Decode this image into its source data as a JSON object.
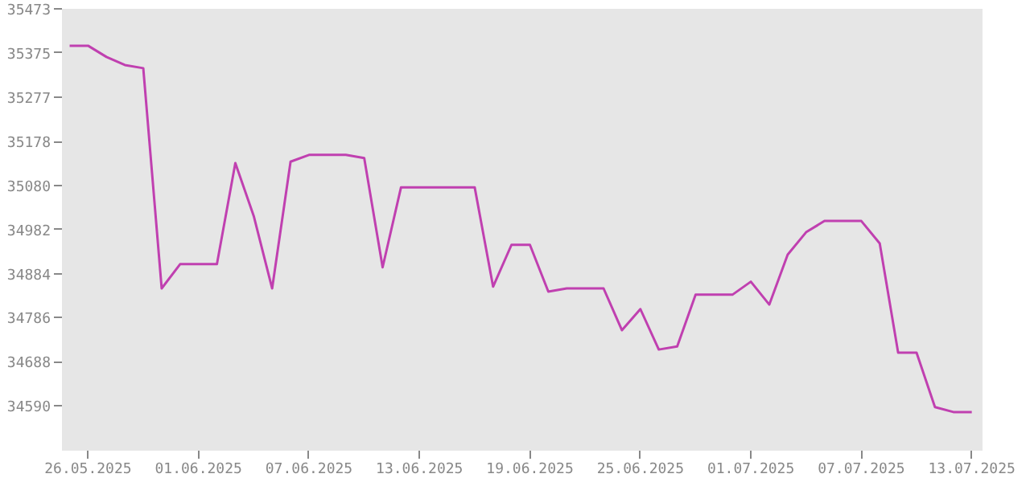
{
  "chart_data": {
    "type": "line",
    "x": [
      "2025-05-25",
      "2025-05-26",
      "2025-05-27",
      "2025-05-28",
      "2025-05-29",
      "2025-05-30",
      "2025-05-31",
      "2025-06-01",
      "2025-06-02",
      "2025-06-03",
      "2025-06-04",
      "2025-06-05",
      "2025-06-06",
      "2025-06-07",
      "2025-06-08",
      "2025-06-09",
      "2025-06-10",
      "2025-06-11",
      "2025-06-12",
      "2025-06-13",
      "2025-06-14",
      "2025-06-15",
      "2025-06-16",
      "2025-06-17",
      "2025-06-18",
      "2025-06-19",
      "2025-06-20",
      "2025-06-21",
      "2025-06-22",
      "2025-06-23",
      "2025-06-24",
      "2025-06-25",
      "2025-06-26",
      "2025-06-27",
      "2025-06-28",
      "2025-06-29",
      "2025-06-30",
      "2025-07-01",
      "2025-07-02",
      "2025-07-03",
      "2025-07-04",
      "2025-07-05",
      "2025-07-06",
      "2025-07-07",
      "2025-07-08",
      "2025-07-09",
      "2025-07-10",
      "2025-07-11",
      "2025-07-12",
      "2025-07-13"
    ],
    "series": [
      {
        "color": "#c040b0",
        "values": [
          35391,
          35391,
          35366,
          35348,
          35341,
          34851,
          34905,
          34905,
          34905,
          35130,
          35012,
          34851,
          35133,
          35148,
          35148,
          35148,
          35141,
          34898,
          35076,
          35076,
          35076,
          35076,
          35076,
          34855,
          34948,
          34948,
          34844,
          34851,
          34851,
          34851,
          34758,
          34805,
          34715,
          34722,
          34837,
          34837,
          34837,
          34866,
          34815,
          34926,
          34976,
          35001,
          35001,
          35001,
          34951,
          34708,
          34708,
          34587,
          34576,
          34576
        ]
      }
    ],
    "xlim": [
      "2025-05-24T14:00",
      "2025-07-13T14:00"
    ],
    "xticks": [
      {
        "value": "2025-05-26",
        "label": "26.05.2025"
      },
      {
        "value": "2025-06-01",
        "label": "01.06.2025"
      },
      {
        "value": "2025-06-07",
        "label": "07.06.2025"
      },
      {
        "value": "2025-06-13",
        "label": "13.06.2025"
      },
      {
        "value": "2025-06-19",
        "label": "19.06.2025"
      },
      {
        "value": "2025-06-25",
        "label": "25.06.2025"
      },
      {
        "value": "2025-07-01",
        "label": "01.07.2025"
      },
      {
        "value": "2025-07-07",
        "label": "07.07.2025"
      },
      {
        "value": "2025-07-13",
        "label": "13.07.2025"
      }
    ],
    "ylim": [
      34490,
      35473
    ],
    "yticks": [
      34590,
      34688,
      34786,
      34884,
      34982,
      35080,
      35178,
      35277,
      35375,
      35473
    ],
    "marker": "none",
    "line_style": "solid"
  }
}
